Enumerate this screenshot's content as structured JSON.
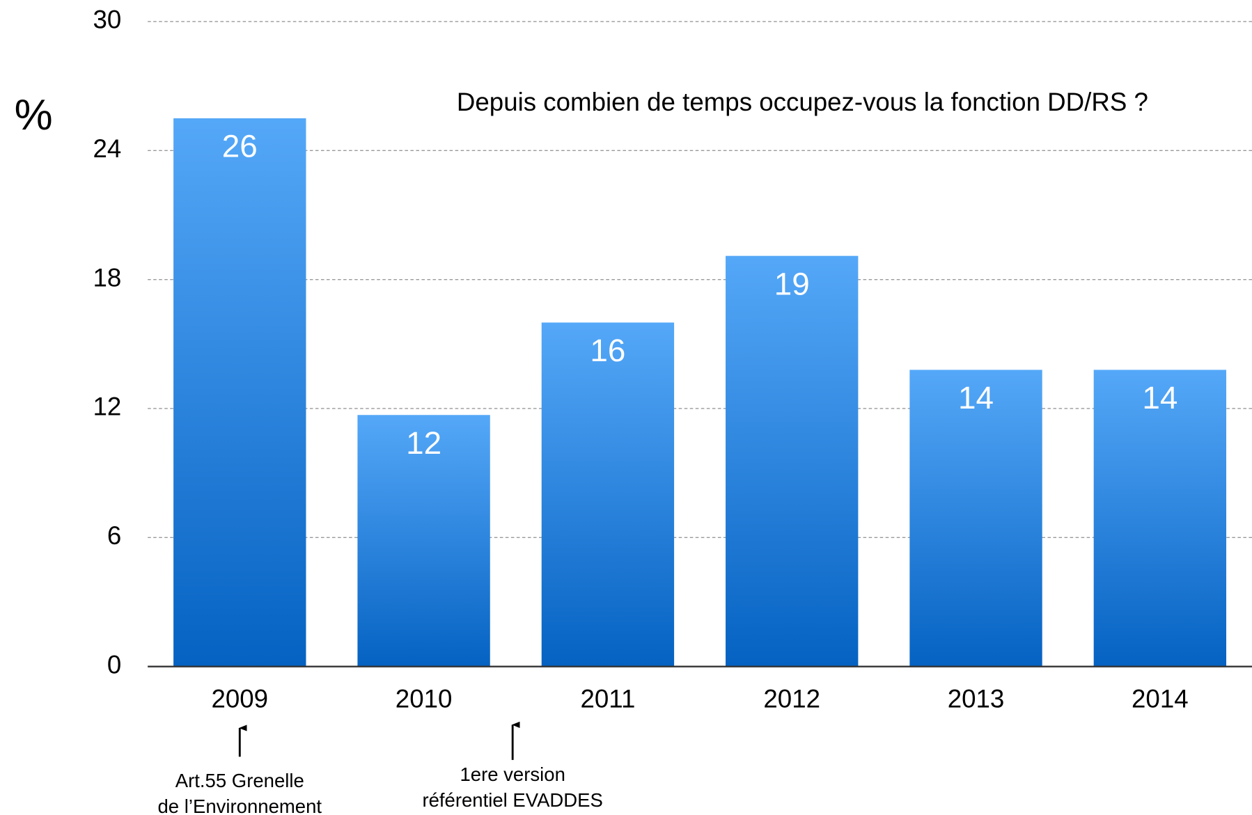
{
  "chart_data": {
    "type": "bar",
    "title": "Depuis combien de temps occupez-vous la fonction DD/RS ?",
    "y_label": "%",
    "categories": [
      "2009",
      "2010",
      "2011",
      "2012",
      "2013",
      "2014"
    ],
    "values": [
      25.5,
      11.7,
      16,
      19.1,
      13.8,
      13.8
    ],
    "value_labels": [
      "26",
      "12",
      "16",
      "19",
      "14",
      "14"
    ],
    "gradient": [
      "#55a8f8",
      "#0562c2"
    ],
    "ylim": [
      0,
      30
    ],
    "yticks": [
      0,
      6,
      12,
      18,
      24,
      30
    ],
    "grid": true,
    "annotations": [
      {
        "lines": [
          "Art.55 Grenelle",
          "de l’Environnement"
        ]
      },
      {
        "lines": [
          "1ere version",
          "référentiel EVADDES"
        ]
      }
    ]
  }
}
